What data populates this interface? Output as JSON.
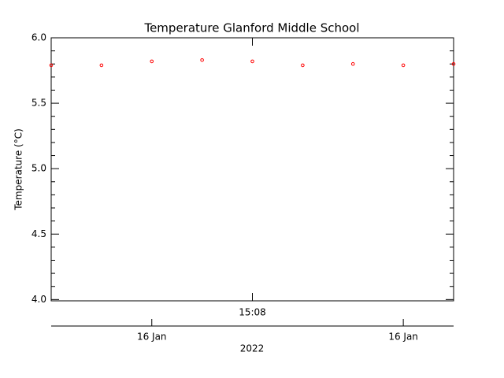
{
  "chart_data": {
    "type": "scatter",
    "title": "Temperature Glanford Middle School",
    "ylabel": "Temperature (°C)",
    "xlabel": "2022",
    "x": [
      0,
      1,
      2,
      3,
      4,
      5,
      6,
      7,
      8
    ],
    "series": [
      {
        "color": "#ff0000",
        "values": [
          5.79,
          5.79,
          5.82,
          5.83,
          5.82,
          5.79,
          5.8,
          5.79,
          5.8
        ]
      }
    ],
    "xlim": [
      0,
      8
    ],
    "xticks": [
      {
        "value": 4,
        "label": "15:08"
      }
    ],
    "x2ticks": [
      {
        "value": 2,
        "label": "16 Jan"
      },
      {
        "value": 7,
        "label": "16 Jan"
      }
    ],
    "ylim": [
      3.99,
      6.0
    ],
    "yticks": [
      {
        "value": 4,
        "label": "4.0"
      },
      4.5,
      {
        "value": 5,
        "label": "5.0"
      },
      5.5,
      {
        "value": 6,
        "label": "6.0"
      }
    ],
    "yminorticks": [
      4.1,
      4.2,
      4.3,
      4.4,
      4.6,
      4.7,
      4.8,
      4.9,
      5.1,
      5.2,
      5.3,
      5.4,
      5.6,
      5.7,
      5.8,
      5.9
    ]
  }
}
